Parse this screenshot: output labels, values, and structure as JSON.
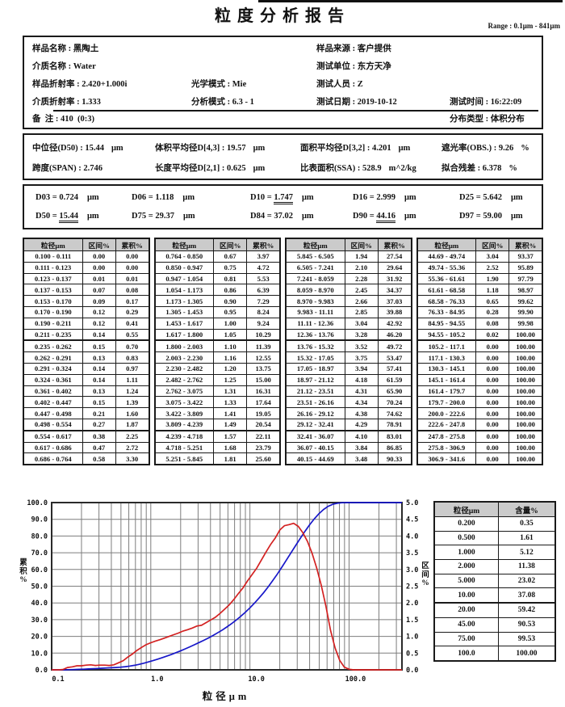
{
  "title": "粒度分析报告",
  "range_label": "Range : 0.1μm - 841μm",
  "info": {
    "sample_name": {
      "label": "样品名称",
      "value": "黑陶土"
    },
    "medium_name": {
      "label": "介质名称",
      "value": "Water"
    },
    "sample_ri": {
      "label": "样品折射率",
      "value": "2.420+1.000i"
    },
    "medium_ri": {
      "label": "介质折射率",
      "value": "1.333"
    },
    "optical_mode": {
      "label": "光学模式",
      "value": "Mie"
    },
    "analysis_mode": {
      "label": "分析模式",
      "value": "6.3 - 1"
    },
    "sample_source": {
      "label": "样品来源",
      "value": "客户提供"
    },
    "test_unit": {
      "label": "测试单位",
      "value": "东方天净"
    },
    "tester": {
      "label": "测试人员",
      "value": "Z"
    },
    "test_date": {
      "label": "测试日期",
      "value": "2019-10-12"
    },
    "test_time": {
      "label": "测试时间",
      "value": "16:22:09"
    },
    "remark": {
      "label": "备  注",
      "value": "410  (0:3)"
    },
    "dist_type": {
      "label": "分布类型",
      "value": "体积分布"
    }
  },
  "stats": {
    "d50": {
      "label": "中位径(D50)",
      "value": "15.44",
      "unit": "μm"
    },
    "d43": {
      "label": "体积平均径D[4,3]",
      "value": "19.57",
      "unit": "μm"
    },
    "d32": {
      "label": "面积平均径D[3,2]",
      "value": "4.201",
      "unit": "μm"
    },
    "obs": {
      "label": "遮光率(OBS.)",
      "value": "9.26",
      "unit": "%"
    },
    "span": {
      "label": "跨度(SPAN)",
      "value": "2.746",
      "unit": ""
    },
    "d21": {
      "label": "长度平均径D[2,1]",
      "value": "0.625",
      "unit": "μm"
    },
    "ssa": {
      "label": "比表面积(SSA)",
      "value": "528.9",
      "unit": "m^2/kg"
    },
    "residual": {
      "label": "拟合残差",
      "value": "6.378",
      "unit": "%"
    }
  },
  "dvalues": [
    {
      "name": "D03",
      "value": "0.724",
      "unit": "μm",
      "underline": false
    },
    {
      "name": "D06",
      "value": "1.118",
      "unit": "μm",
      "underline": false
    },
    {
      "name": "D10",
      "value": "1.747",
      "unit": "μm",
      "underline": true
    },
    {
      "name": "D16",
      "value": "2.999",
      "unit": "μm",
      "underline": false
    },
    {
      "name": "D25",
      "value": "5.642",
      "unit": "μm",
      "underline": false
    },
    {
      "name": "D50",
      "value": "15.44",
      "unit": "μm",
      "underline": true
    },
    {
      "name": "D75",
      "value": "29.37",
      "unit": "μm",
      "underline": false
    },
    {
      "name": "D84",
      "value": "37.02",
      "unit": "μm",
      "underline": false
    },
    {
      "name": "D90",
      "value": "44.16",
      "unit": "μm",
      "underline": true
    },
    {
      "name": "D97",
      "value": "59.00",
      "unit": "μm",
      "underline": false
    }
  ],
  "size_table": {
    "headers": [
      "粒径μm",
      "区间%",
      "累积%"
    ],
    "groups": [
      [
        [
          "0.100 - 0.111",
          "0.00",
          "0.00"
        ],
        [
          "0.111 - 0.123",
          "0.00",
          "0.00"
        ],
        [
          "0.123 - 0.137",
          "0.01",
          "0.01"
        ],
        [
          "0.137 - 0.153",
          "0.07",
          "0.08"
        ],
        [
          "0.153 - 0.170",
          "0.09",
          "0.17"
        ],
        [
          "0.170 - 0.190",
          "0.12",
          "0.29"
        ],
        [
          "0.190 - 0.211",
          "0.12",
          "0.41"
        ],
        [
          "0.211 - 0.235",
          "0.14",
          "0.55"
        ],
        [
          "0.235 - 0.262",
          "0.15",
          "0.70"
        ],
        [
          "0.262 - 0.291",
          "0.13",
          "0.83"
        ],
        [
          "0.291 - 0.324",
          "0.14",
          "0.97"
        ],
        [
          "0.324 - 0.361",
          "0.14",
          "1.11"
        ],
        [
          "0.361 - 0.402",
          "0.13",
          "1.24"
        ],
        [
          "0.402 - 0.447",
          "0.15",
          "1.39"
        ],
        [
          "0.447 - 0.498",
          "0.21",
          "1.60"
        ],
        [
          "0.498 - 0.554",
          "0.27",
          "1.87"
        ],
        [
          "0.554 - 0.617",
          "0.38",
          "2.25"
        ],
        [
          "0.617 - 0.686",
          "0.47",
          "2.72"
        ],
        [
          "0.686 - 0.764",
          "0.58",
          "3.30"
        ]
      ],
      [
        [
          "0.764 - 0.850",
          "0.67",
          "3.97"
        ],
        [
          "0.850 - 0.947",
          "0.75",
          "4.72"
        ],
        [
          "0.947 - 1.054",
          "0.81",
          "5.53"
        ],
        [
          "1.054 - 1.173",
          "0.86",
          "6.39"
        ],
        [
          "1.173 - 1.305",
          "0.90",
          "7.29"
        ],
        [
          "1.305 - 1.453",
          "0.95",
          "8.24"
        ],
        [
          "1.453 - 1.617",
          "1.00",
          "9.24"
        ],
        [
          "1.617 - 1.800",
          "1.05",
          "10.29"
        ],
        [
          "1.800 - 2.003",
          "1.10",
          "11.39"
        ],
        [
          "2.003 - 2.230",
          "1.16",
          "12.55"
        ],
        [
          "2.230 - 2.482",
          "1.20",
          "13.75"
        ],
        [
          "2.482 - 2.762",
          "1.25",
          "15.00"
        ],
        [
          "2.762 - 3.075",
          "1.31",
          "16.31"
        ],
        [
          "3.075 - 3.422",
          "1.33",
          "17.64"
        ],
        [
          "3.422 - 3.809",
          "1.41",
          "19.05"
        ],
        [
          "3.809 - 4.239",
          "1.49",
          "20.54"
        ],
        [
          "4.239 - 4.718",
          "1.57",
          "22.11"
        ],
        [
          "4.718 - 5.251",
          "1.68",
          "23.79"
        ],
        [
          "5.251 - 5.845",
          "1.81",
          "25.60"
        ]
      ],
      [
        [
          "5.845 - 6.505",
          "1.94",
          "27.54"
        ],
        [
          "6.505 - 7.241",
          "2.10",
          "29.64"
        ],
        [
          "7.241 - 8.059",
          "2.28",
          "31.92"
        ],
        [
          "8.059 - 8.970",
          "2.45",
          "34.37"
        ],
        [
          "8.970 - 9.983",
          "2.66",
          "37.03"
        ],
        [
          "9.983 - 11.11",
          "2.85",
          "39.88"
        ],
        [
          "11.11 - 12.36",
          "3.04",
          "42.92"
        ],
        [
          "12.36 - 13.76",
          "3.28",
          "46.20"
        ],
        [
          "13.76 - 15.32",
          "3.52",
          "49.72"
        ],
        [
          "15.32 - 17.05",
          "3.75",
          "53.47"
        ],
        [
          "17.05 - 18.97",
          "3.94",
          "57.41"
        ],
        [
          "18.97 - 21.12",
          "4.18",
          "61.59"
        ],
        [
          "21.12 - 23.51",
          "4.31",
          "65.90"
        ],
        [
          "23.51 - 26.16",
          "4.34",
          "70.24"
        ],
        [
          "26.16 - 29.12",
          "4.38",
          "74.62"
        ],
        [
          "29.12 - 32.41",
          "4.29",
          "78.91"
        ],
        [
          "32.41 - 36.07",
          "4.10",
          "83.01"
        ],
        [
          "36.07 - 40.15",
          "3.84",
          "86.85"
        ],
        [
          "40.15 - 44.69",
          "3.48",
          "90.33"
        ]
      ],
      [
        [
          "44.69 - 49.74",
          "3.04",
          "93.37"
        ],
        [
          "49.74 - 55.36",
          "2.52",
          "95.89"
        ],
        [
          "55.36 - 61.61",
          "1.90",
          "97.79"
        ],
        [
          "61.61 - 68.58",
          "1.18",
          "98.97"
        ],
        [
          "68.58 - 76.33",
          "0.65",
          "99.62"
        ],
        [
          "76.33 - 84.95",
          "0.28",
          "99.90"
        ],
        [
          "84.95 - 94.55",
          "0.08",
          "99.98"
        ],
        [
          "94.55 - 105.2",
          "0.02",
          "100.00"
        ],
        [
          "105.2 - 117.1",
          "0.00",
          "100.00"
        ],
        [
          "117.1 - 130.3",
          "0.00",
          "100.00"
        ],
        [
          "130.3 - 145.1",
          "0.00",
          "100.00"
        ],
        [
          "145.1 - 161.4",
          "0.00",
          "100.00"
        ],
        [
          "161.4 - 179.7",
          "0.00",
          "100.00"
        ],
        [
          "179.7 - 200.0",
          "0.00",
          "100.00"
        ],
        [
          "200.0 - 222.6",
          "0.00",
          "100.00"
        ],
        [
          "222.6 - 247.8",
          "0.00",
          "100.00"
        ],
        [
          "247.8 - 275.8",
          "0.00",
          "100.00"
        ],
        [
          "275.8 - 306.9",
          "0.00",
          "100.00"
        ],
        [
          "306.9 - 341.6",
          "0.00",
          "100.00"
        ]
      ]
    ]
  },
  "content_table": {
    "headers": [
      "粒径μm",
      "含量%"
    ],
    "rows": [
      [
        "0.200",
        "0.35"
      ],
      [
        "0.500",
        "1.61"
      ],
      [
        "1.000",
        "5.12"
      ],
      [
        "2.000",
        "11.38"
      ],
      [
        "5.000",
        "23.02"
      ],
      [
        "10.00",
        "37.08"
      ],
      [
        "20.00",
        "59.42"
      ],
      [
        "45.00",
        "90.53"
      ],
      [
        "75.00",
        "99.53"
      ],
      [
        "100.0",
        "100.00"
      ]
    ]
  },
  "chart_data": {
    "type": "line",
    "x_scale": "log",
    "xlabel": "粒径μm",
    "ylabel_left": "累积%",
    "ylabel_right": "区间%",
    "xlim": [
      0.1,
      341.6
    ],
    "ylim_left": [
      0,
      100
    ],
    "ylim_right": [
      0,
      5
    ],
    "y_tick_step_left": 10,
    "y_tick_step_right": 0.5,
    "grid": true,
    "x_tick_values": [
      0.1,
      1,
      10,
      100
    ],
    "x_tick_labels": [
      "0.1",
      "1.0",
      "10.0",
      "100.0"
    ],
    "bin_upper_edges": [
      0.111,
      0.123,
      0.137,
      0.153,
      0.17,
      0.19,
      0.211,
      0.235,
      0.262,
      0.291,
      0.324,
      0.361,
      0.402,
      0.447,
      0.498,
      0.554,
      0.617,
      0.686,
      0.764,
      0.85,
      0.947,
      1.054,
      1.173,
      1.305,
      1.453,
      1.617,
      1.8,
      2.003,
      2.23,
      2.482,
      2.762,
      3.075,
      3.422,
      3.809,
      4.239,
      4.718,
      5.251,
      5.845,
      6.505,
      7.241,
      8.059,
      8.97,
      9.983,
      11.11,
      12.36,
      13.76,
      15.32,
      17.05,
      18.97,
      21.12,
      23.51,
      26.16,
      29.12,
      32.41,
      36.07,
      40.15,
      44.69,
      49.74,
      55.36,
      61.61,
      68.58,
      76.33,
      84.95,
      94.55,
      105.2,
      117.1,
      130.3,
      145.1,
      161.4,
      179.7,
      200.0,
      222.6,
      247.8,
      275.8,
      306.9,
      341.6
    ],
    "series": [
      {
        "name": "累积%",
        "axis": "left",
        "color": "#1717c9",
        "values": [
          0.0,
          0.0,
          0.01,
          0.08,
          0.17,
          0.29,
          0.41,
          0.55,
          0.7,
          0.83,
          0.97,
          1.11,
          1.24,
          1.39,
          1.6,
          1.87,
          2.25,
          2.72,
          3.3,
          3.97,
          4.72,
          5.53,
          6.39,
          7.29,
          8.24,
          9.24,
          10.29,
          11.39,
          12.55,
          13.75,
          15.0,
          16.31,
          17.64,
          19.05,
          20.54,
          22.11,
          23.79,
          25.6,
          27.54,
          29.64,
          31.92,
          34.37,
          37.03,
          39.88,
          42.92,
          46.2,
          49.72,
          53.47,
          57.41,
          61.59,
          65.9,
          70.24,
          74.62,
          78.91,
          83.01,
          86.85,
          90.33,
          93.37,
          95.89,
          97.79,
          98.97,
          99.62,
          99.9,
          99.98,
          100.0,
          100.0,
          100.0,
          100.0,
          100.0,
          100.0,
          100.0,
          100.0,
          100.0,
          100.0,
          100.0,
          100.0
        ]
      },
      {
        "name": "区间%",
        "axis": "right",
        "color": "#d32121",
        "values": [
          0.0,
          0.0,
          0.01,
          0.07,
          0.09,
          0.12,
          0.12,
          0.14,
          0.15,
          0.13,
          0.14,
          0.14,
          0.13,
          0.15,
          0.21,
          0.27,
          0.38,
          0.47,
          0.58,
          0.67,
          0.75,
          0.81,
          0.86,
          0.9,
          0.95,
          1.0,
          1.05,
          1.1,
          1.16,
          1.2,
          1.25,
          1.31,
          1.33,
          1.41,
          1.49,
          1.57,
          1.68,
          1.81,
          1.94,
          2.1,
          2.28,
          2.45,
          2.66,
          2.85,
          3.04,
          3.28,
          3.52,
          3.75,
          3.94,
          4.18,
          4.31,
          4.34,
          4.38,
          4.29,
          4.1,
          3.84,
          3.48,
          3.04,
          2.52,
          1.9,
          1.18,
          0.65,
          0.28,
          0.08,
          0.02,
          0.0,
          0.0,
          0.0,
          0.0,
          0.0,
          0.0,
          0.0,
          0.0,
          0.0,
          0.0,
          0.0
        ]
      }
    ]
  }
}
